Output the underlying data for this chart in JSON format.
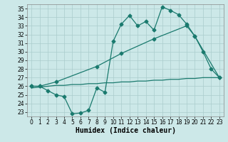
{
  "line1_x": [
    0,
    1,
    2,
    3,
    4,
    5,
    6,
    7,
    8,
    9,
    10,
    11,
    12,
    13,
    14,
    15,
    16,
    17,
    18,
    19,
    20,
    21,
    22,
    23
  ],
  "line1_y": [
    26.0,
    26.0,
    25.5,
    25.0,
    24.8,
    22.8,
    22.9,
    23.2,
    25.8,
    25.3,
    31.2,
    33.2,
    34.2,
    33.0,
    33.5,
    32.5,
    35.2,
    34.8,
    34.3,
    33.2,
    31.8,
    30.0,
    28.0,
    27.0
  ],
  "line2_x": [
    0,
    1,
    3,
    8,
    11,
    15,
    19,
    20,
    23
  ],
  "line2_y": [
    26.0,
    26.0,
    26.5,
    28.3,
    29.8,
    31.5,
    33.0,
    31.8,
    27.0
  ],
  "line3_x": [
    0,
    1,
    2,
    3,
    4,
    5,
    6,
    7,
    8,
    9,
    10,
    11,
    12,
    13,
    14,
    15,
    16,
    17,
    18,
    19,
    20,
    21,
    22,
    23
  ],
  "line3_y": [
    25.8,
    25.9,
    26.0,
    26.1,
    26.1,
    26.2,
    26.2,
    26.3,
    26.3,
    26.4,
    26.4,
    26.5,
    26.5,
    26.6,
    26.6,
    26.7,
    26.7,
    26.8,
    26.8,
    26.9,
    26.9,
    27.0,
    27.0,
    27.0
  ],
  "line_color": "#1a7a6e",
  "bg_color": "#cce8e8",
  "grid_color": "#aacccc",
  "xlabel": "Humidex (Indice chaleur)",
  "xlabel_fontsize": 7,
  "xlim": [
    -0.5,
    23.5
  ],
  "ylim": [
    22.5,
    35.5
  ],
  "yticks": [
    23,
    24,
    25,
    26,
    27,
    28,
    29,
    30,
    31,
    32,
    33,
    34,
    35
  ],
  "xticks": [
    0,
    1,
    2,
    3,
    4,
    5,
    6,
    7,
    8,
    9,
    10,
    11,
    12,
    13,
    14,
    15,
    16,
    17,
    18,
    19,
    20,
    21,
    22,
    23
  ],
  "tick_fontsize": 5.5,
  "marker_size": 2.5,
  "line_width": 0.9
}
